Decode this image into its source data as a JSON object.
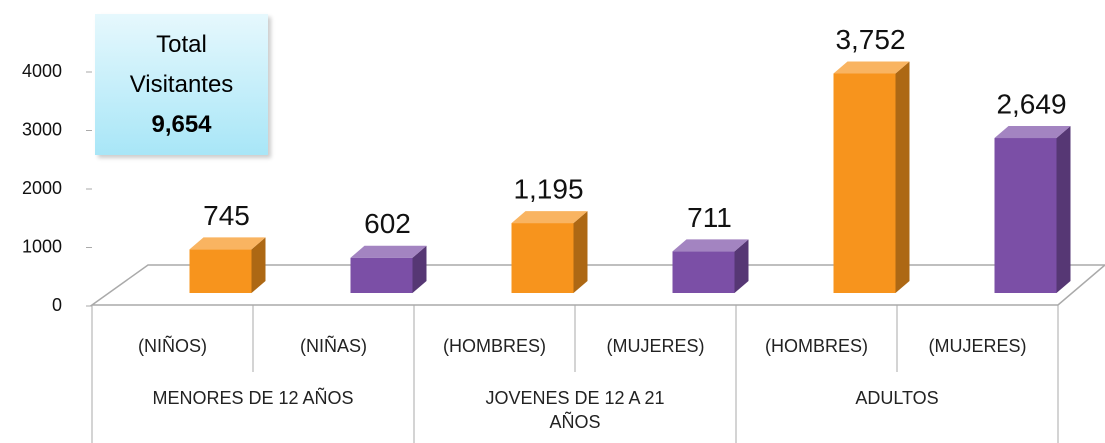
{
  "chart_data": {
    "type": "bar3d",
    "annotation": {
      "text": "Total Visitantes",
      "total": "9,654"
    },
    "groups": [
      {
        "name": "MENORES DE 12 AÑOS",
        "categories": [
          "(NIÑOS)",
          "(NIÑAS)"
        ]
      },
      {
        "name": "JOVENES DE 12 A 21 AÑOS",
        "categories": [
          "(HOMBRES)",
          "(MUJERES)"
        ]
      },
      {
        "name": "ADULTOS",
        "categories": [
          "(HOMBRES)",
          "(MUJERES)"
        ]
      }
    ],
    "values": [
      745,
      602,
      1195,
      711,
      3752,
      2649
    ],
    "value_labels": [
      "745",
      "602",
      "1,195",
      "711",
      "3,752",
      "2,649"
    ],
    "colors": [
      "#f7941d",
      "#7b4fa6",
      "#f7941d",
      "#7b4fa6",
      "#f7941d",
      "#7b4fa6"
    ],
    "ylim": [
      0,
      4000
    ],
    "yticks": [
      0,
      1000,
      2000,
      3000,
      4000
    ],
    "grid": false
  }
}
